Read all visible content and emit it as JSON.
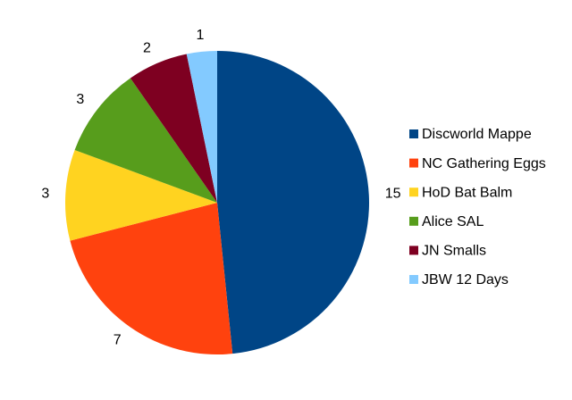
{
  "chart_data": {
    "type": "pie",
    "categories": [
      "Discworld Mappe",
      "NC Gathering Eggs",
      "HoD Bat Balm",
      "Alice SAL",
      "JN Smalls",
      "JBW 12 Days"
    ],
    "values": [
      15,
      7,
      3,
      3,
      2,
      1
    ],
    "colors": [
      "#004586",
      "#ff420e",
      "#ffd320",
      "#579d1c",
      "#7e0021",
      "#83caff"
    ],
    "legend": "right"
  }
}
